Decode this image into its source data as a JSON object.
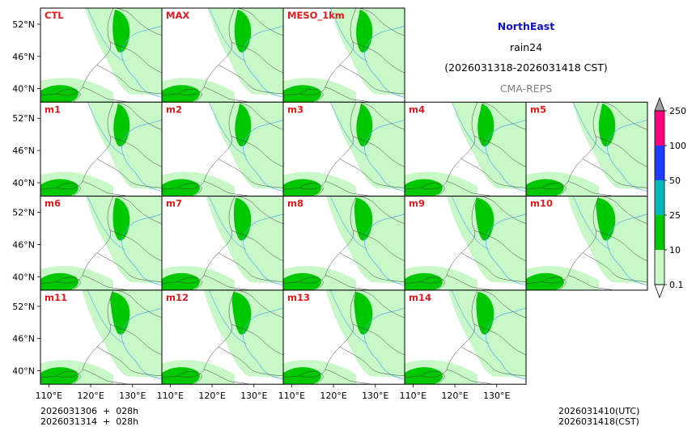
{
  "header": {
    "region": "NorthEast",
    "variable": "rain24",
    "period": "(2026031318-2026031418 CST)",
    "system": "CMA-REPS",
    "region_color": "#1010c8",
    "system_color": "#7f7f7f"
  },
  "footer": {
    "init_utc": "2026031306  +  028h",
    "init_cst": "2026031314  +  028h",
    "valid_utc": "2026031410(UTC)",
    "valid_cst": "2026031418(CST)"
  },
  "chart_data": {
    "type": "heatmap",
    "title": "NorthEast rain24 (2026031318-2026031418 CST) CMA-REPS",
    "member_label_color": "#e41a1c",
    "panels": [
      [
        "CTL",
        "MAX",
        "MESO_1km"
      ],
      [
        "m1",
        "m2",
        "m3",
        "m4",
        "m5"
      ],
      [
        "m6",
        "m7",
        "m8",
        "m9",
        "m10"
      ],
      [
        "m11",
        "m12",
        "m13",
        "m14"
      ]
    ],
    "lat_ticks": [
      "52°N",
      "46°N",
      "40°N"
    ],
    "lat_values": [
      52,
      46,
      40
    ],
    "lat_range": [
      37.5,
      55
    ],
    "lon_ticks": [
      "110°E",
      "120°E",
      "130°E"
    ],
    "lon_values": [
      110,
      120,
      130
    ],
    "lon_range": [
      108,
      137
    ],
    "colorbar": {
      "labels": [
        "0.1",
        "10",
        "25",
        "50",
        "100",
        "250"
      ],
      "colors": [
        "#c8f8c8",
        "#00c800",
        "#00b8b8",
        "#1e3cff",
        "#ff0080"
      ],
      "over_color": "#a0a0a0",
      "under_color": "#ffffff",
      "extend": "both"
    }
  }
}
